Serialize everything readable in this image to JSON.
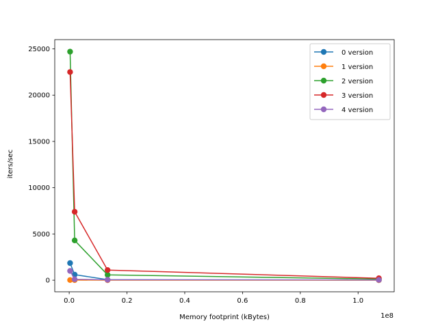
{
  "chart_data": {
    "type": "line",
    "xlabel": "Memory footprint (kBytes)",
    "ylabel": "iters/sec",
    "x_offset_label": "1e8",
    "xlim": [
      -5000000,
      112500000
    ],
    "ylim": [
      -1250,
      26000
    ],
    "x_ticks": [
      0,
      20000000,
      40000000,
      60000000,
      80000000,
      100000000
    ],
    "x_tick_labels": [
      "0.0",
      "0.2",
      "0.4",
      "0.6",
      "0.8",
      "1.0"
    ],
    "y_ticks": [
      0,
      5000,
      10000,
      15000,
      20000,
      25000
    ],
    "y_tick_labels": [
      "0",
      "5000",
      "10000",
      "15000",
      "20000",
      "25000"
    ],
    "grid": false,
    "legend_position": "upper right",
    "series": [
      {
        "name": "0 version",
        "color": "#1f77b4",
        "x": [
          300000,
          1900000,
          13300000,
          107200000
        ],
        "y": [
          1850,
          600,
          60,
          10
        ]
      },
      {
        "name": "1 version",
        "color": "#ff7f0e",
        "x": [
          300000,
          1900000,
          13300000,
          107200000
        ],
        "y": [
          20,
          10,
          5,
          2
        ]
      },
      {
        "name": "2 version",
        "color": "#2ca02c",
        "x": [
          300000,
          1900000,
          13300000,
          107200000
        ],
        "y": [
          24700,
          4300,
          580,
          120
        ]
      },
      {
        "name": "3 version",
        "color": "#d62728",
        "x": [
          300000,
          1900000,
          13300000,
          107200000
        ],
        "y": [
          22500,
          7400,
          1100,
          210
        ]
      },
      {
        "name": "4 version",
        "color": "#9467bd",
        "x": [
          300000,
          1900000,
          13300000,
          107200000
        ],
        "y": [
          1000,
          100,
          40,
          25
        ]
      }
    ]
  }
}
